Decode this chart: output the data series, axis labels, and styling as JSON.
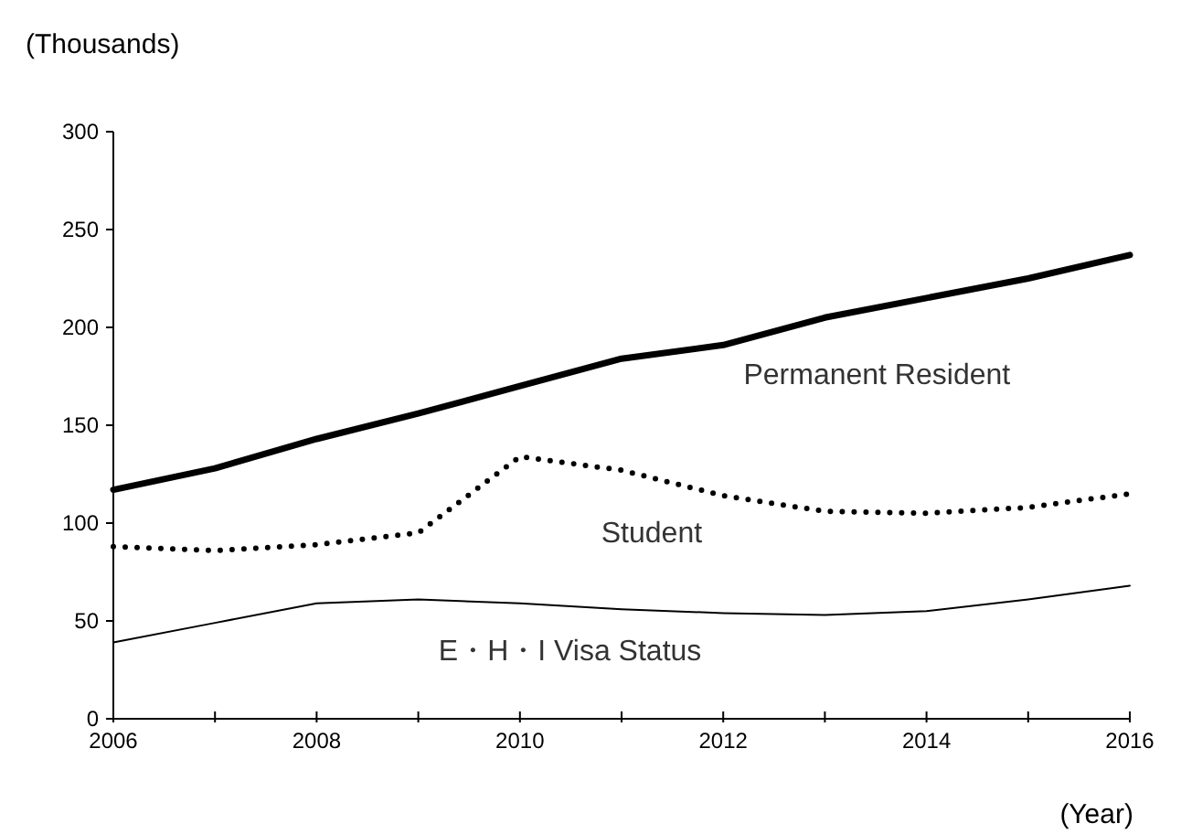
{
  "chart_data": {
    "type": "line",
    "ylabel": "(Thousands)",
    "xlabel": "(Year)",
    "x": [
      2006,
      2007,
      2008,
      2009,
      2010,
      2011,
      2012,
      2013,
      2014,
      2015,
      2016
    ],
    "series": [
      {
        "name": "Permanent Resident",
        "color": "#000000",
        "line_style": "solid",
        "values": [
          117,
          128,
          143,
          156,
          170,
          184,
          191,
          205,
          215,
          225,
          237
        ]
      },
      {
        "name": "Student",
        "color": "#000000",
        "line_style": "dotted",
        "values": [
          88,
          86,
          89,
          95,
          134,
          127,
          114,
          106,
          105,
          108,
          115
        ]
      },
      {
        "name": "E・H・I Visa Status",
        "color": "#000000",
        "line_style": "solid",
        "values": [
          39,
          49,
          59,
          61,
          59,
          56,
          54,
          53,
          55,
          61,
          68
        ]
      }
    ],
    "xlim": [
      2006,
      2016
    ],
    "ylim": [
      0,
      300
    ],
    "xticks": [
      2006,
      {
        "value": 2007,
        "label": null
      },
      2008,
      {
        "value": 2009,
        "label": null
      },
      2010,
      {
        "value": 2011,
        "label": null
      },
      2012,
      {
        "value": 2013,
        "label": null
      },
      2014,
      {
        "value": 2015,
        "label": null
      },
      2016
    ],
    "yticks": [
      0,
      50,
      100,
      150,
      200,
      250,
      300
    ],
    "grid": false
  }
}
